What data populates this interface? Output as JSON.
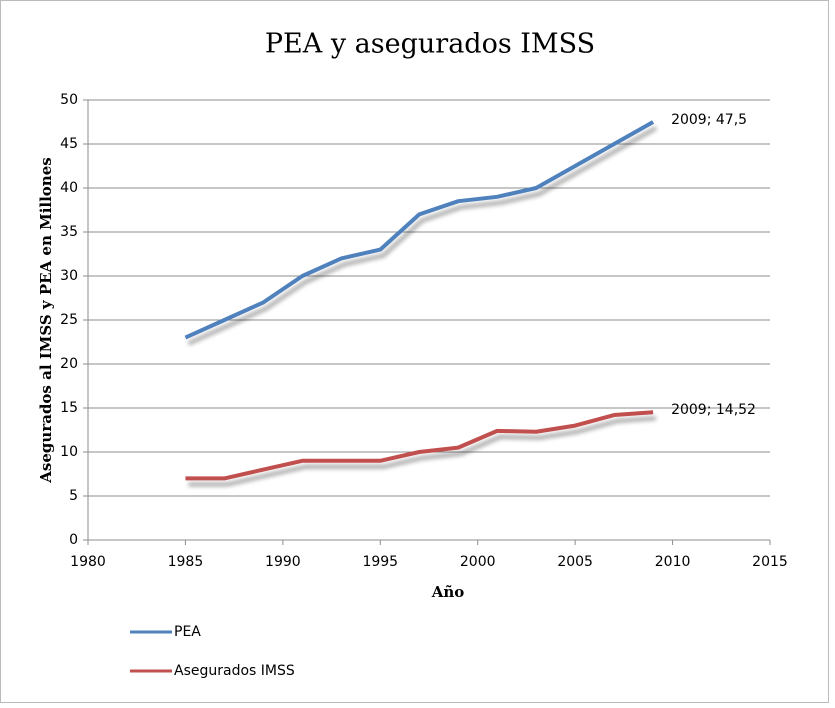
{
  "chart_data": {
    "type": "line",
    "title": "PEA y asegurados IMSS",
    "x_label": "Año",
    "y_label": "Asegurados al IMSS y PEA en Millones",
    "x": [
      1985,
      1987,
      1989,
      1991,
      1993,
      1995,
      1997,
      1999,
      2001,
      2003,
      2005,
      2007,
      2009
    ],
    "series": [
      {
        "name": "PEA",
        "color": "#4f81bd",
        "values": [
          23,
          25,
          27,
          30,
          32,
          33,
          37,
          38.5,
          39,
          40,
          42.5,
          45,
          47.5
        ],
        "value_labels": [
          null,
          null,
          null,
          null,
          null,
          null,
          null,
          null,
          null,
          null,
          null,
          null,
          "2009; 47,5"
        ]
      },
      {
        "name": "Asegurados IMSS",
        "color": "#c0504d",
        "values": [
          7,
          7,
          8,
          9,
          9,
          9,
          10,
          10.5,
          12.4,
          12.3,
          13,
          14.2,
          14.52
        ],
        "value_labels": [
          null,
          null,
          null,
          null,
          null,
          null,
          null,
          null,
          null,
          null,
          null,
          null,
          "2009; 14,52"
        ]
      }
    ],
    "xlim": [
      1980,
      2015
    ],
    "xticks": [
      1980,
      1985,
      1990,
      1995,
      2000,
      2005,
      2010,
      2015
    ],
    "ylim": [
      0,
      50
    ],
    "yticks": [
      0,
      5,
      10,
      15,
      20,
      25,
      30,
      35,
      40,
      45,
      50
    ],
    "grid": true,
    "legend": "bottom-left"
  }
}
